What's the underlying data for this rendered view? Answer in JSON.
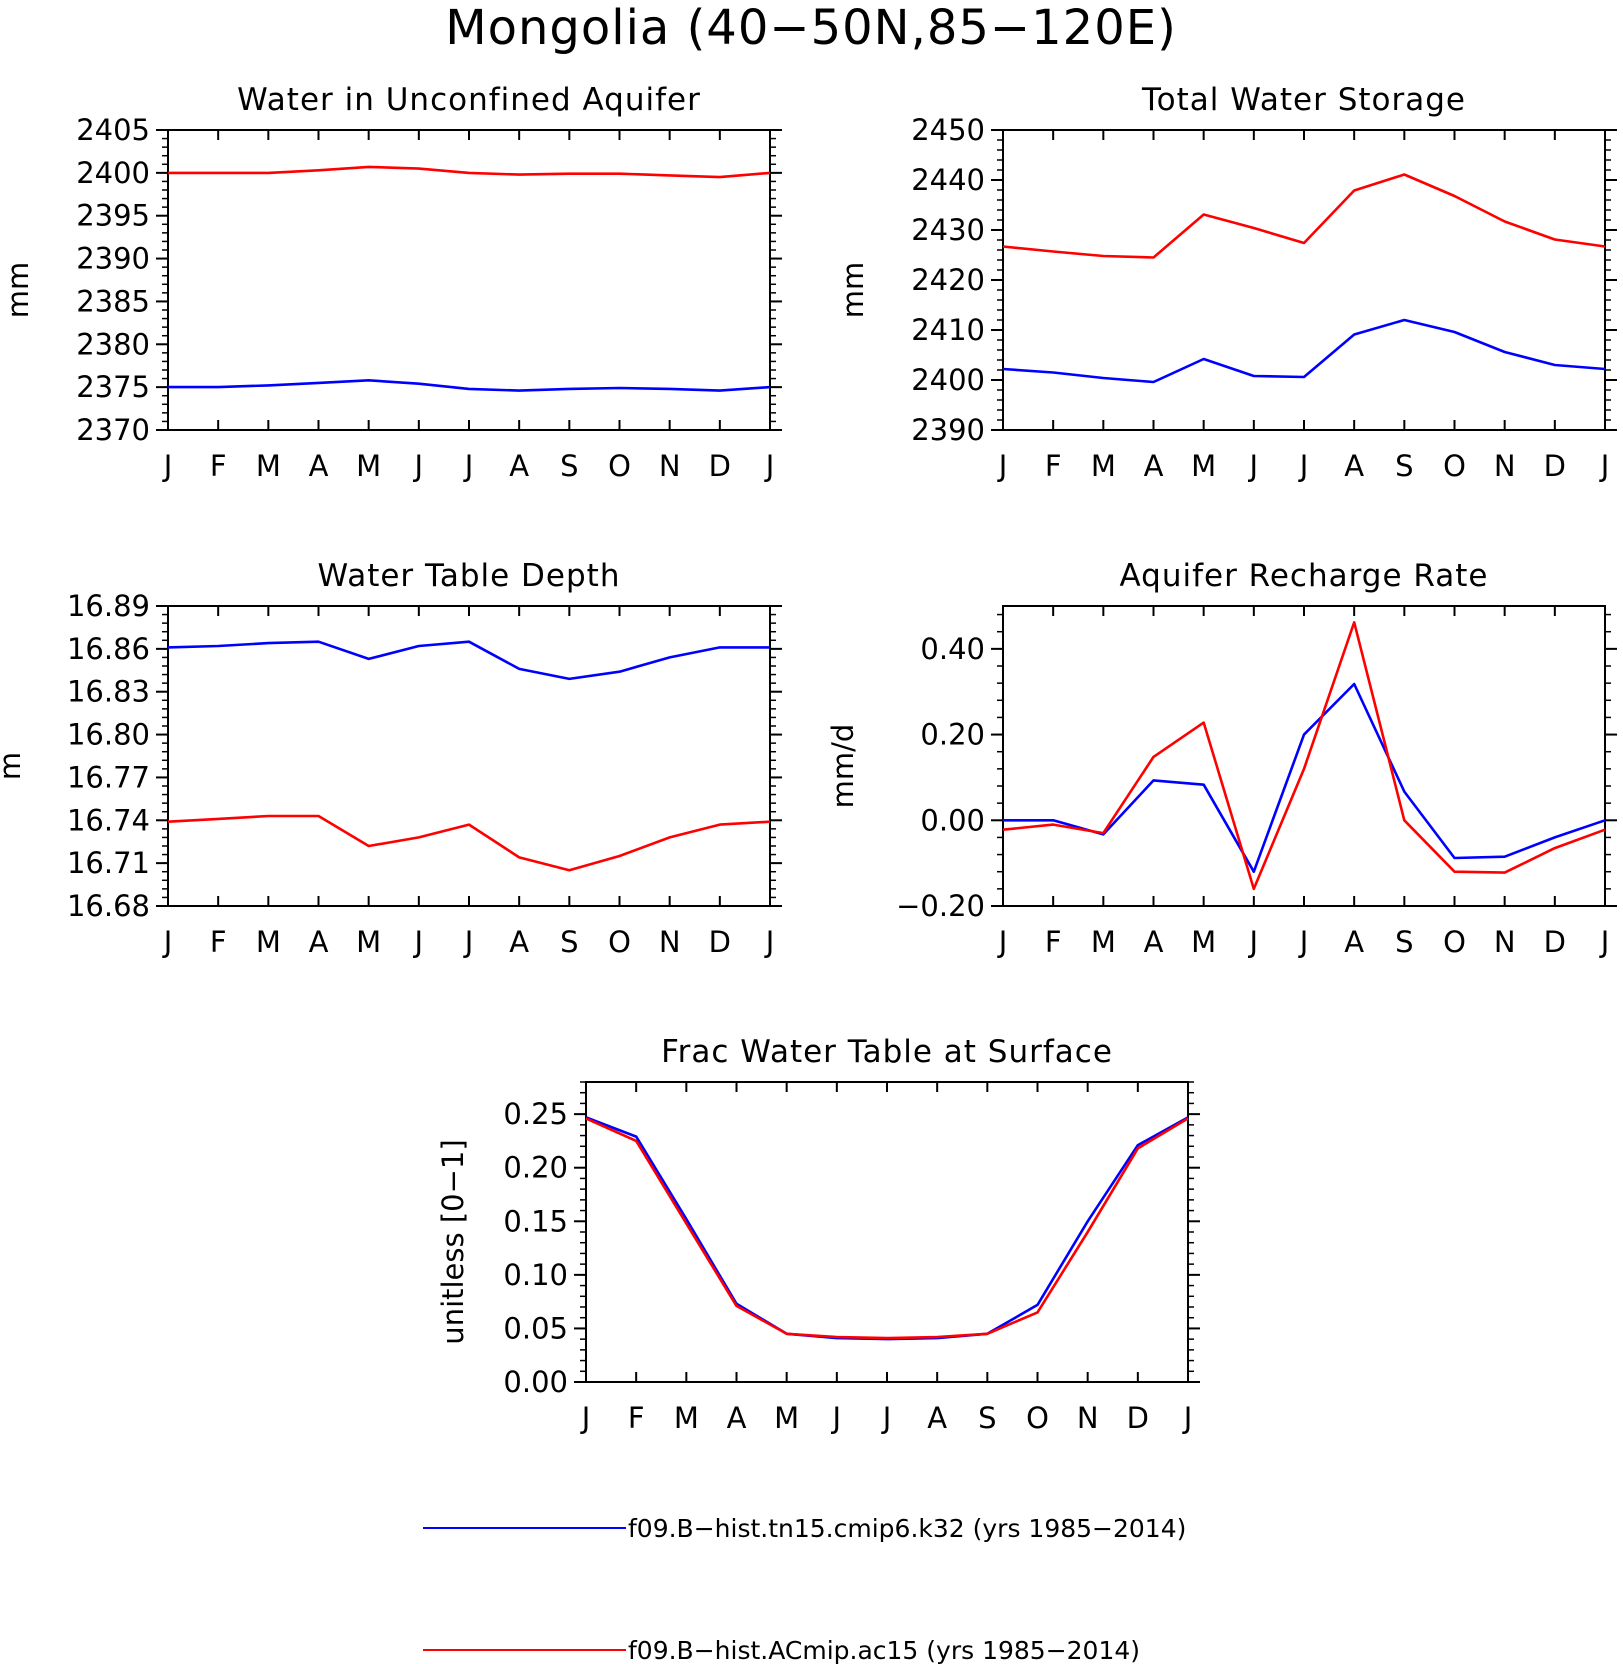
{
  "figure": {
    "title": "Mongolia (40−50N,85−120E)"
  },
  "colors": {
    "series_k32": "#0000ff",
    "series_ac15": "#ff0000",
    "axes": "#000000"
  },
  "legend": [
    {
      "label": "f09.B−hist.tn15.cmip6.k32 (yrs 1985−2014)",
      "color": "#0000ff"
    },
    {
      "label": "f09.B−hist.ACmip.ac15 (yrs 1985−2014)",
      "color": "#ff0000"
    }
  ],
  "chart_data": [
    {
      "type": "line",
      "title": "Water in Unconfined Aquifer",
      "xlabel": "",
      "ylabel": "mm",
      "categories": [
        "J",
        "F",
        "M",
        "A",
        "M",
        "J",
        "J",
        "A",
        "S",
        "O",
        "N",
        "D",
        "J"
      ],
      "ylim": [
        2370,
        2405
      ],
      "yticks": [
        2370,
        2375,
        2380,
        2385,
        2390,
        2395,
        2400,
        2405
      ],
      "ytick_labels": [
        "2370",
        "2375",
        "2380",
        "2385",
        "2390",
        "2395",
        "2400",
        "2405"
      ],
      "grid": false,
      "series": [
        {
          "name": "f09.B−hist.tn15.cmip6.k32 (yrs 1985−2014)",
          "color": "#0000ff",
          "values": [
            2375.0,
            2375.0,
            2375.2,
            2375.5,
            2375.8,
            2375.4,
            2374.8,
            2374.6,
            2374.8,
            2374.9,
            2374.8,
            2374.6,
            2375.0
          ]
        },
        {
          "name": "f09.B−hist.ACmip.ac15 (yrs 1985−2014)",
          "color": "#ff0000",
          "values": [
            2400.0,
            2400.0,
            2400.0,
            2400.3,
            2400.7,
            2400.5,
            2400.0,
            2399.8,
            2399.9,
            2399.9,
            2399.7,
            2399.5,
            2400.0
          ]
        }
      ]
    },
    {
      "type": "line",
      "title": "Total Water Storage",
      "xlabel": "",
      "ylabel": "mm",
      "categories": [
        "J",
        "F",
        "M",
        "A",
        "M",
        "J",
        "J",
        "A",
        "S",
        "O",
        "N",
        "D",
        "J"
      ],
      "ylim": [
        2390,
        2450
      ],
      "yticks": [
        2390,
        2400,
        2410,
        2420,
        2430,
        2440,
        2450
      ],
      "ytick_labels": [
        "2390",
        "2400",
        "2410",
        "2420",
        "2430",
        "2440",
        "2450"
      ],
      "grid": false,
      "series": [
        {
          "name": "f09.B−hist.tn15.cmip6.k32 (yrs 1985−2014)",
          "color": "#0000ff",
          "values": [
            2402.2,
            2401.5,
            2400.4,
            2399.6,
            2404.2,
            2400.8,
            2400.6,
            2409.1,
            2412.0,
            2409.6,
            2405.6,
            2403.0,
            2402.2
          ]
        },
        {
          "name": "f09.B−hist.ACmip.ac15 (yrs 1985−2014)",
          "color": "#ff0000",
          "values": [
            2426.7,
            2425.7,
            2424.8,
            2424.5,
            2433.1,
            2430.4,
            2427.4,
            2437.9,
            2441.1,
            2436.8,
            2431.7,
            2428.1,
            2426.7
          ]
        }
      ]
    },
    {
      "type": "line",
      "title": "Water Table Depth",
      "xlabel": "",
      "ylabel": "m",
      "categories": [
        "J",
        "F",
        "M",
        "A",
        "M",
        "J",
        "J",
        "A",
        "S",
        "O",
        "N",
        "D",
        "J"
      ],
      "ylim": [
        16.68,
        16.89
      ],
      "yticks": [
        16.68,
        16.71,
        16.74,
        16.77,
        16.8,
        16.83,
        16.86,
        16.89
      ],
      "ytick_labels": [
        "16.68",
        "16.71",
        "16.74",
        "16.77",
        "16.80",
        "16.83",
        "16.86",
        "16.89"
      ],
      "grid": false,
      "series": [
        {
          "name": "f09.B−hist.tn15.cmip6.k32 (yrs 1985−2014)",
          "color": "#0000ff",
          "values": [
            16.861,
            16.862,
            16.864,
            16.865,
            16.853,
            16.862,
            16.865,
            16.846,
            16.839,
            16.844,
            16.854,
            16.861,
            16.861
          ]
        },
        {
          "name": "f09.B−hist.ACmip.ac15 (yrs 1985−2014)",
          "color": "#ff0000",
          "values": [
            16.739,
            16.741,
            16.743,
            16.743,
            16.722,
            16.728,
            16.737,
            16.714,
            16.705,
            16.715,
            16.728,
            16.737,
            16.739
          ]
        }
      ]
    },
    {
      "type": "line",
      "title": "Aquifer Recharge Rate",
      "xlabel": "",
      "ylabel": "mm/d",
      "categories": [
        "J",
        "F",
        "M",
        "A",
        "M",
        "J",
        "J",
        "A",
        "S",
        "O",
        "N",
        "D",
        "J"
      ],
      "ylim": [
        -0.2,
        0.5
      ],
      "yticks": [
        -0.2,
        0.0,
        0.2,
        0.4
      ],
      "ytick_labels": [
        "−0.20",
        "0.00",
        "0.20",
        "0.40"
      ],
      "grid": false,
      "series": [
        {
          "name": "f09.B−hist.tn15.cmip6.k32 (yrs 1985−2014)",
          "color": "#0000ff",
          "values": [
            0.0,
            0.0,
            -0.033,
            0.093,
            0.083,
            -0.12,
            0.2,
            0.318,
            0.067,
            -0.088,
            -0.085,
            -0.04,
            0.0
          ]
        },
        {
          "name": "f09.B−hist.ACmip.ac15 (yrs 1985−2014)",
          "color": "#ff0000",
          "values": [
            -0.022,
            -0.01,
            -0.03,
            0.148,
            0.228,
            -0.16,
            0.12,
            0.462,
            0.0,
            -0.12,
            -0.122,
            -0.065,
            -0.022
          ]
        }
      ]
    },
    {
      "type": "line",
      "title": "Frac Water Table at Surface",
      "xlabel": "",
      "ylabel": "unitless [0−1]",
      "categories": [
        "J",
        "F",
        "M",
        "A",
        "M",
        "J",
        "J",
        "A",
        "S",
        "O",
        "N",
        "D",
        "J"
      ],
      "ylim": [
        0,
        0.28
      ],
      "yticks": [
        0.0,
        0.05,
        0.1,
        0.15,
        0.2,
        0.25
      ],
      "ytick_labels": [
        "0.00",
        "0.05",
        "0.10",
        "0.15",
        "0.20",
        "0.25"
      ],
      "grid": false,
      "series": [
        {
          "name": "f09.B−hist.tn15.cmip6.k32 (yrs 1985−2014)",
          "color": "#0000ff",
          "values": [
            0.247,
            0.229,
            0.152,
            0.073,
            0.045,
            0.041,
            0.04,
            0.041,
            0.045,
            0.072,
            0.15,
            0.221,
            0.247
          ]
        },
        {
          "name": "f09.B−hist.ACmip.ac15 (yrs 1985−2014)",
          "color": "#ff0000",
          "values": [
            0.246,
            0.225,
            0.148,
            0.071,
            0.045,
            0.042,
            0.041,
            0.042,
            0.045,
            0.065,
            0.14,
            0.218,
            0.246
          ]
        }
      ]
    }
  ]
}
